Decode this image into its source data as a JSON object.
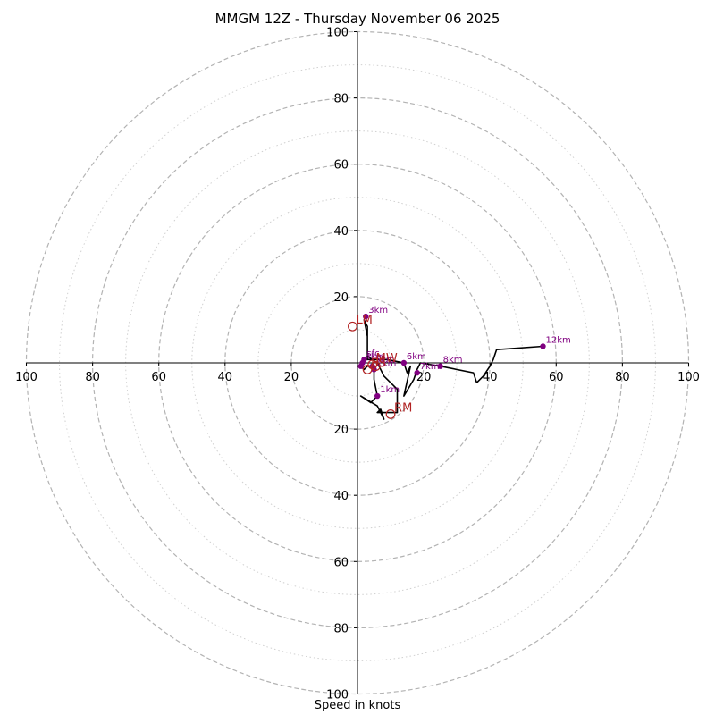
{
  "chart_data": {
    "type": "hodograph",
    "title": "MMGM 12Z - Thursday November 06 2025",
    "xlabel": "Speed in knots",
    "units": "knots",
    "rings": {
      "major": [
        20,
        40,
        60,
        80,
        100
      ],
      "minor": [
        10,
        30,
        50,
        70,
        90
      ]
    },
    "axis_tick_labels": [
      "20",
      "40",
      "60",
      "80",
      "100"
    ],
    "axis_max": 100,
    "hodograph_trace": [
      {
        "u": 1,
        "v": -1
      },
      {
        "u": 2,
        "v": -2
      },
      {
        "u": 3,
        "v": -1
      },
      {
        "u": 4,
        "v": -1
      },
      {
        "u": 5,
        "v": -2
      },
      {
        "u": 5,
        "v": -5
      },
      {
        "u": 6,
        "v": -10
      },
      {
        "u": 4,
        "v": -12
      },
      {
        "u": 1,
        "v": -10
      },
      {
        "u": 6,
        "v": -13
      },
      {
        "u": 8,
        "v": -17
      },
      {
        "u": 7,
        "v": -14
      },
      {
        "u": 6,
        "v": -15
      },
      {
        "u": 12,
        "v": -15
      },
      {
        "u": 12,
        "v": -8
      },
      {
        "u": 8,
        "v": -4
      },
      {
        "u": 6,
        "v": 0
      },
      {
        "u": 3,
        "v": 2
      },
      {
        "u": 3,
        "v": 8
      },
      {
        "u": 2,
        "v": 13
      },
      {
        "u": 3,
        "v": 11
      },
      {
        "u": 3,
        "v": 1
      },
      {
        "u": 6,
        "v": 1
      },
      {
        "u": 9,
        "v": 1
      },
      {
        "u": 14,
        "v": 0
      },
      {
        "u": 15,
        "v": -3
      },
      {
        "u": 16,
        "v": -1
      },
      {
        "u": 14,
        "v": -10
      },
      {
        "u": 17,
        "v": -5
      },
      {
        "u": 18,
        "v": -2
      },
      {
        "u": 19,
        "v": 0
      },
      {
        "u": 25,
        "v": -1
      },
      {
        "u": 35,
        "v": -3
      },
      {
        "u": 36,
        "v": -6
      },
      {
        "u": 38,
        "v": -4
      },
      {
        "u": 40,
        "v": -1
      },
      {
        "u": 41,
        "v": 1
      },
      {
        "u": 42,
        "v": 4
      },
      {
        "u": 56,
        "v": 5
      }
    ],
    "height_markers": [
      {
        "label": "",
        "u": 1,
        "v": -1
      },
      {
        "label": "sfc",
        "u": 2,
        "v": 1
      },
      {
        "label": "1km",
        "u": 6,
        "v": -10
      },
      {
        "label": "2km",
        "u": 5,
        "v": -2
      },
      {
        "label": "3km",
        "u": 2.5,
        "v": 14
      },
      {
        "label": "4km",
        "u": 1.5,
        "v": 0
      },
      {
        "label": "5km",
        "u": 4.5,
        "v": -1
      },
      {
        "label": "6km",
        "u": 14,
        "v": 0
      },
      {
        "label": "7km",
        "u": 18,
        "v": -3
      },
      {
        "label": "8km",
        "u": 25,
        "v": -1
      },
      {
        "label": "12km",
        "u": 56,
        "v": 5
      }
    ],
    "storm_motion": [
      {
        "label": "LM",
        "u": -1.5,
        "v": 11
      },
      {
        "label": "RM",
        "u": 10,
        "v": -15.5
      },
      {
        "label": "MW",
        "u": 4.5,
        "v": -0.5
      },
      {
        "label": "BS",
        "u": 3,
        "v": -2
      },
      {
        "label": "",
        "u": 5.5,
        "v": -1
      }
    ]
  },
  "colors": {
    "trace": "#000000",
    "markers": "#800080",
    "storm_motion": "#b22222",
    "major_ring": "#b3b3b3",
    "minor_ring": "#d0d0d0"
  }
}
